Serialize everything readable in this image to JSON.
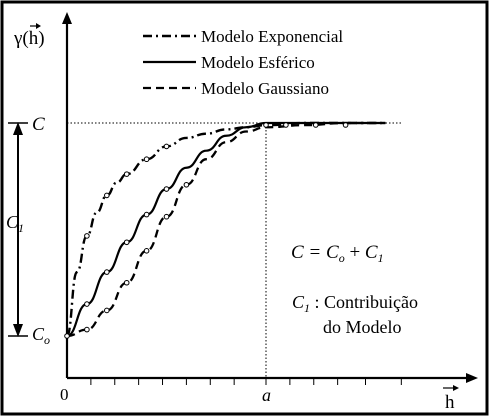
{
  "figure": {
    "y_axis_label": "γ(h)",
    "x_axis_label": "h",
    "origin_label": "0",
    "sill_label": "C",
    "nugget_label": "Co",
    "partial_sill_label": "C1",
    "range_label": "a",
    "equation": {
      "lhs": "C = ",
      "term1": "C",
      "term1_sub": "o",
      "plus": " + ",
      "term2": "C",
      "term2_sub": "1"
    },
    "note": {
      "c1": "C",
      "c1_sub": "1",
      "line1": " : Contribuição",
      "line2": "do Modelo"
    }
  },
  "legend": [
    {
      "name": "Modelo Exponencial",
      "style": "dash-dot"
    },
    {
      "name": "Modelo Esférico",
      "style": "solid"
    },
    {
      "name": "Modelo Gaussiano",
      "style": "dashed"
    }
  ],
  "chart_data": {
    "type": "line",
    "x_axis": "h",
    "y_axis": "γ(h)",
    "nugget": 0.0,
    "sill": 1.0,
    "range": 1.0,
    "xlim": [
      0,
      1.7
    ],
    "ylim": [
      0,
      1.0
    ],
    "series": [
      {
        "name": "Modelo Exponencial",
        "style": "dash-dot",
        "x": [
          0,
          0.05,
          0.1,
          0.15,
          0.2,
          0.25,
          0.3,
          0.4,
          0.5,
          0.6,
          0.7,
          0.8,
          0.9,
          1.0,
          1.2,
          1.4,
          1.6
        ],
        "y": [
          0,
          0.3,
          0.47,
          0.58,
          0.66,
          0.72,
          0.76,
          0.83,
          0.89,
          0.93,
          0.95,
          0.97,
          0.98,
          0.99,
          1.0,
          1.0,
          1.0
        ]
      },
      {
        "name": "Modelo Esférico",
        "style": "solid",
        "x": [
          0,
          0.1,
          0.2,
          0.3,
          0.4,
          0.5,
          0.6,
          0.7,
          0.8,
          0.9,
          1.0,
          1.2,
          1.4,
          1.6
        ],
        "y": [
          0,
          0.15,
          0.3,
          0.44,
          0.57,
          0.69,
          0.79,
          0.87,
          0.94,
          0.98,
          1.0,
          1.0,
          1.0,
          1.0
        ]
      },
      {
        "name": "Modelo Gaussiano",
        "style": "dashed",
        "x": [
          0,
          0.1,
          0.2,
          0.3,
          0.4,
          0.5,
          0.6,
          0.7,
          0.8,
          0.9,
          1.0,
          1.2,
          1.4,
          1.6
        ],
        "y": [
          0,
          0.03,
          0.12,
          0.25,
          0.4,
          0.56,
          0.71,
          0.83,
          0.91,
          0.96,
          0.98,
          0.99,
          1.0,
          1.0
        ]
      }
    ],
    "markers": {
      "Modelo Exponencial": [
        0.1,
        0.2,
        0.3,
        0.4,
        0.5
      ],
      "Modelo Esférico": [
        0.1,
        0.2,
        0.3,
        0.4,
        0.5
      ],
      "Modelo Gaussiano": [
        0.1,
        0.2,
        0.3,
        0.4,
        0.5,
        0.6
      ]
    },
    "plateau_markers_x": [
      1.0,
      1.1,
      1.25,
      1.4
    ]
  }
}
